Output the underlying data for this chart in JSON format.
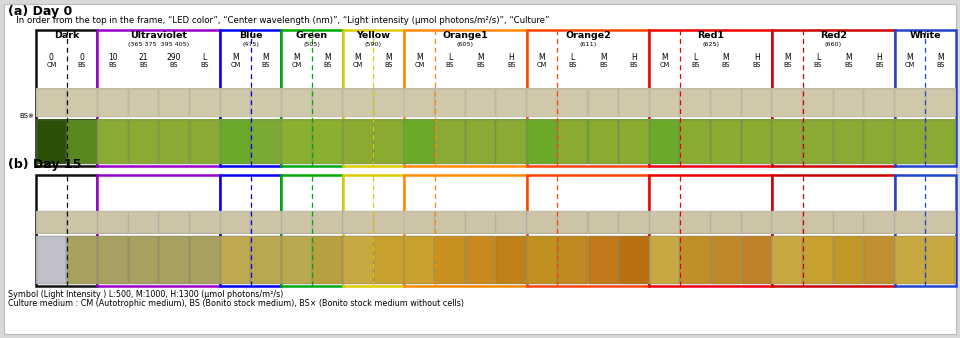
{
  "title_a": "(a) Day 0",
  "title_b": "(b) Day 15",
  "subtitle": "   In order from the top in the frame, “LED color”, “Center wavelength (nm)”, “Light intensity (μmol photons/m²/s)”, “Culture”",
  "footnote1": "Symbol (Light Intensity ) L:500, M:1000, H:1300 (μmol photons/m²/s)",
  "footnote2": "Culture medium : CM (Autotrophic medium), BS (Bonito stock medium), BS× (Bonito stock medium without cells)",
  "bg_color": "#d8d8d8",
  "panel_bg": "#ffffff",
  "sections": [
    {
      "name": "Dark",
      "wavelength": "",
      "border": "#111111",
      "cols": [
        [
          "0",
          "CM"
        ],
        [
          "0",
          "BS"
        ]
      ],
      "dashes": [
        false,
        true
      ]
    },
    {
      "name": "Ultraviolet",
      "wavelength": "(365 375  395 405)",
      "border": "#9900cc",
      "cols": [
        [
          "10",
          "BS"
        ],
        [
          "21",
          "BS"
        ],
        [
          "290",
          "BS"
        ],
        [
          "L",
          "BS"
        ]
      ],
      "dashes": [
        false,
        false,
        false,
        false
      ]
    },
    {
      "name": "Blue",
      "wavelength": "(475)",
      "border": "#0000ee",
      "cols": [
        [
          "M",
          "CM"
        ],
        [
          "M",
          "BS"
        ]
      ],
      "dashes": [
        false,
        true
      ]
    },
    {
      "name": "Green",
      "wavelength": "(505)",
      "border": "#00aa00",
      "cols": [
        [
          "M",
          "CM"
        ],
        [
          "M",
          "BS"
        ]
      ],
      "dashes": [
        false,
        true
      ]
    },
    {
      "name": "Yellow",
      "wavelength": "(590)",
      "border": "#ddcc00",
      "cols": [
        [
          "M",
          "CM"
        ],
        [
          "M",
          "BS"
        ]
      ],
      "dashes": [
        false,
        true
      ]
    },
    {
      "name": "Orange1",
      "wavelength": "(605)",
      "border": "#ff8800",
      "cols": [
        [
          "M",
          "CM"
        ],
        [
          "L",
          "BS"
        ],
        [
          "M",
          "BS"
        ],
        [
          "H",
          "BS"
        ]
      ],
      "dashes": [
        false,
        true,
        false,
        false
      ]
    },
    {
      "name": "Orange2",
      "wavelength": "(611)",
      "border": "#ff4400",
      "cols": [
        [
          "M",
          "CM"
        ],
        [
          "L",
          "BS"
        ],
        [
          "M",
          "BS"
        ],
        [
          "H",
          "BS"
        ]
      ],
      "dashes": [
        false,
        true,
        false,
        false
      ]
    },
    {
      "name": "Red1",
      "wavelength": "(625)",
      "border": "#ee0000",
      "cols": [
        [
          "M",
          "CM"
        ],
        [
          "L",
          "BS"
        ],
        [
          "M",
          "BS"
        ],
        [
          "H",
          "BS"
        ]
      ],
      "dashes": [
        false,
        true,
        false,
        false
      ]
    },
    {
      "name": "Red2",
      "wavelength": "(660)",
      "border": "#cc0000",
      "cols": [
        [
          "M",
          "BS"
        ],
        [
          "L",
          "BS"
        ],
        [
          "M",
          "BS"
        ],
        [
          "H",
          "BS"
        ]
      ],
      "dashes": [
        false,
        true,
        false,
        false
      ]
    },
    {
      "name": "White",
      "wavelength": "",
      "border": "#2244cc",
      "cols": [
        [
          "M",
          "CM"
        ],
        [
          "M",
          "BS"
        ]
      ],
      "dashes": [
        false,
        true
      ]
    }
  ],
  "jar_lid_color": "#c8bfa0",
  "jar_lid_color2": "#b8ae90",
  "day0_jar_colors": {
    "dark_cm": "#3a6010",
    "dark_bs": "#6a9020",
    "uv": "#8aaa33",
    "blue": "#7aaa30",
    "green": "#8ab030",
    "yellow": "#8aaa30",
    "orange1": "#7aaa30",
    "orange2": "#7aaa30",
    "red1": "#7aaa30",
    "red2": "#8aaa33",
    "white": "#8aaa33"
  },
  "day15_jar_colors": {
    "dark_cm": "#c8c8c8",
    "dark_bs": "#b0a870",
    "uv": "#b0a060",
    "blue": "#c0a850",
    "green": "#b8a850",
    "yellow": "#c8a840",
    "orange1_cm": "#c8a030",
    "orange1_bs": "#c89020",
    "orange2_cm": "#c09020",
    "orange2_bs": "#c08018",
    "red1_cm": "#c8a840",
    "red1_bs": "#c09028",
    "red2_bs": "#c09030",
    "white_cm": "#c8a840",
    "white_bs": "#c8a840"
  }
}
